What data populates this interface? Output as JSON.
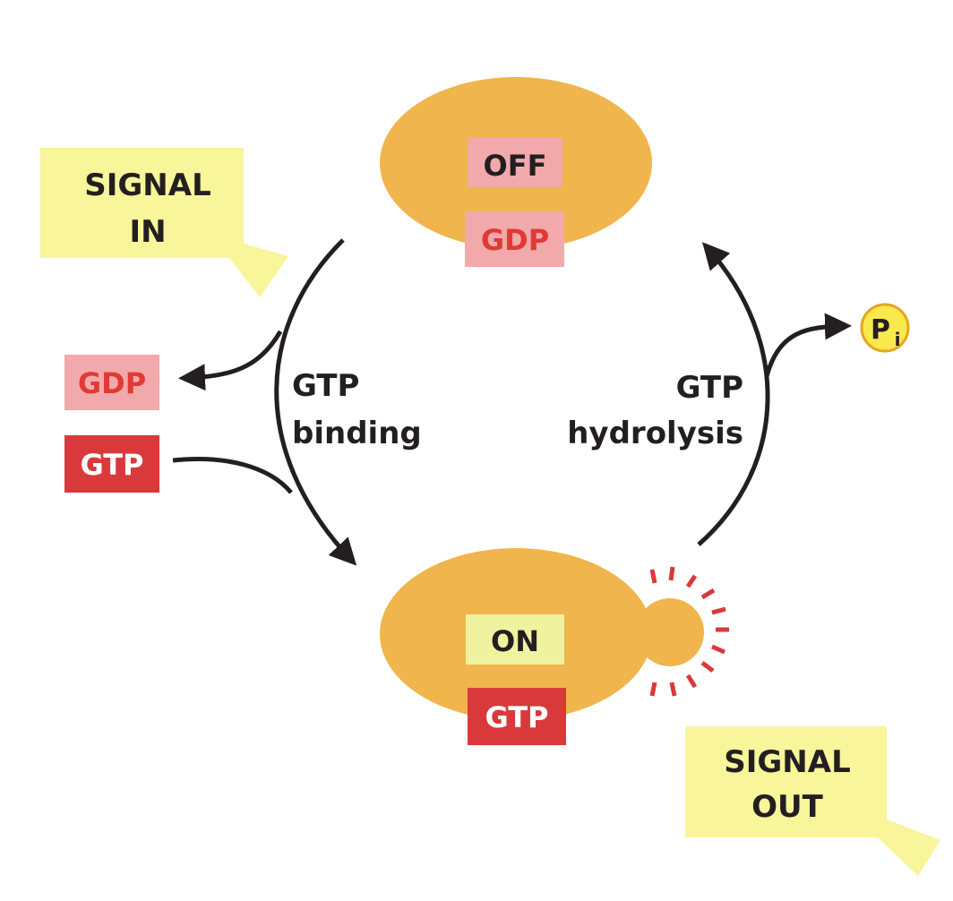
{
  "colors": {
    "protein": "#f0b54c",
    "off_box": "#f2a9ab",
    "on_box": "#f1f2a0",
    "gtp_box": "#d9393b",
    "gdp_text": "#e03a34",
    "signal_note": "#f8f59a",
    "phosphate_fill": "#f9e94c",
    "phosphate_stroke": "#e5a51f",
    "arrow": "#231f20",
    "rays": "#d9393b"
  },
  "signal_in": {
    "line1": "SIGNAL",
    "line2": "IN"
  },
  "off_state": {
    "state": "OFF",
    "nucleotide": "GDP"
  },
  "on_state": {
    "state": "ON",
    "nucleotide": "GTP"
  },
  "released": {
    "nucleotide": "GDP"
  },
  "incoming": {
    "nucleotide": "GTP"
  },
  "binding_step": {
    "line1": "GTP",
    "line2": "binding"
  },
  "hydrolysis_step": {
    "line1": "GTP",
    "line2": "hydrolysis"
  },
  "phosphate": {
    "symbol": "P",
    "subscript": "i"
  },
  "signal_out": {
    "line1": "SIGNAL",
    "line2": "OUT"
  }
}
